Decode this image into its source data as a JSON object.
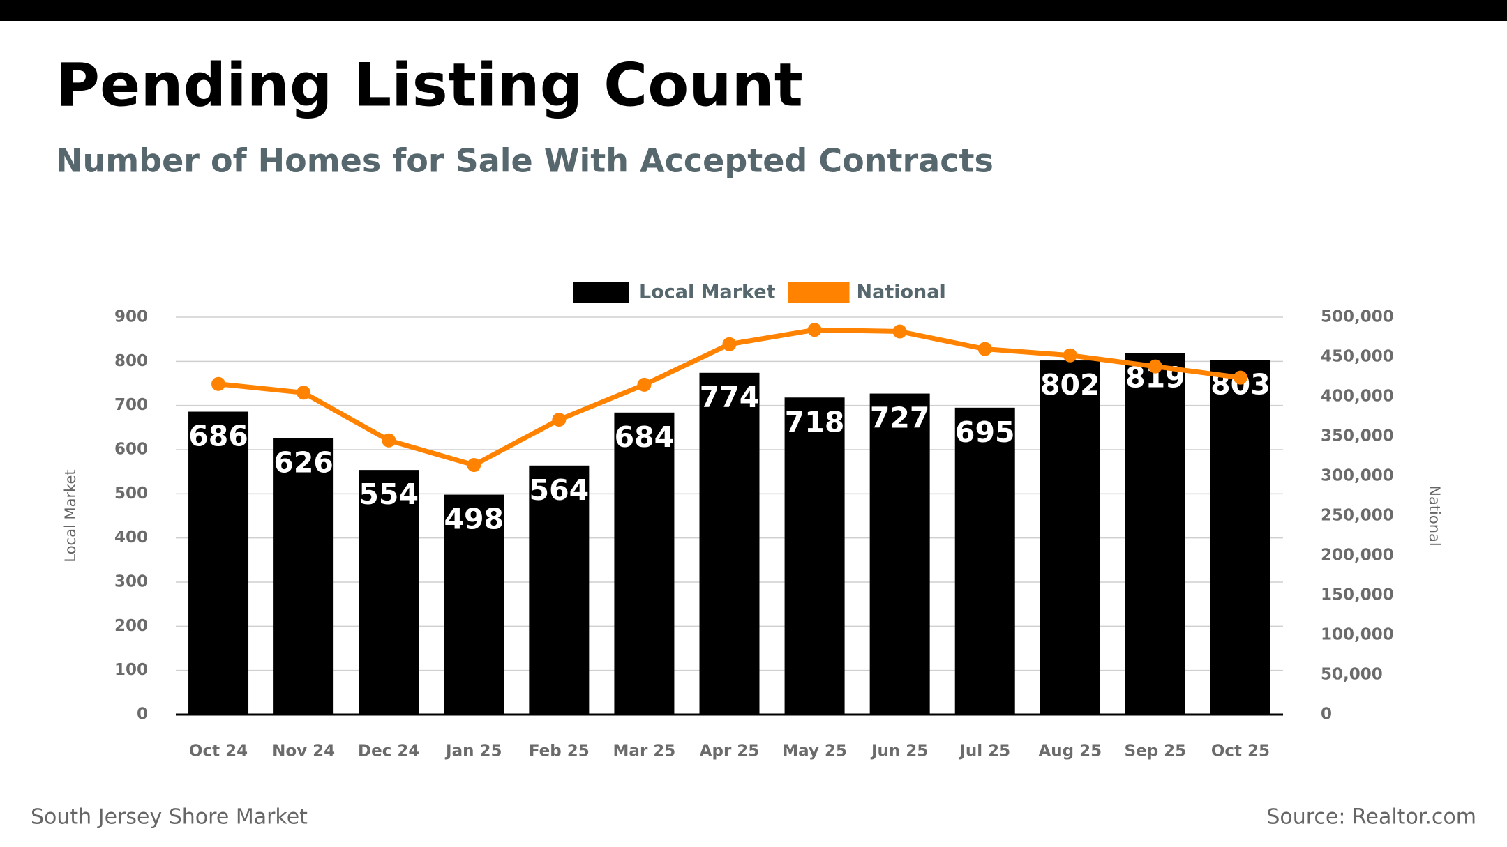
{
  "chart_data": {
    "type": "bar",
    "title": "Pending Listing Count",
    "subtitle": "Number of Homes for Sale With Accepted Contracts",
    "footer_left": "South Jersey Shore Market",
    "footer_right": "Source: Realtor.com",
    "y_label": "Local Market",
    "y2_label": "National",
    "categories": [
      "Oct 24",
      "Nov 24",
      "Dec 24",
      "Jan 25",
      "Feb 25",
      "Mar 25",
      "Apr 25",
      "May 25",
      "Jun 25",
      "Jul 25",
      "Aug 25",
      "Sep 25",
      "Oct 25"
    ],
    "series": [
      {
        "name": "Local Market",
        "type": "bar",
        "color": "#000000",
        "values": [
          686,
          626,
          554,
          498,
          564,
          684,
          774,
          718,
          727,
          695,
          802,
          819,
          803
        ]
      },
      {
        "name": "National",
        "type": "line",
        "axis": "y2",
        "color": "#ff8200",
        "values": [
          416000,
          405000,
          345000,
          314000,
          371000,
          415000,
          466000,
          484000,
          482000,
          460000,
          452000,
          438000,
          424000
        ]
      }
    ],
    "ylim": [
      0,
      900
    ],
    "yticks": [
      0,
      100,
      200,
      300,
      400,
      500,
      600,
      700,
      800,
      900
    ],
    "y2lim": [
      0,
      500000
    ],
    "y2ticks": [
      0,
      {
        "value": 50000,
        "label": "50,000"
      },
      {
        "value": 100000,
        "label": "100,000"
      },
      {
        "value": 150000,
        "label": "150,000"
      },
      {
        "value": 200000,
        "label": "200,000"
      },
      {
        "value": 250000,
        "label": "250,000"
      },
      {
        "value": 300000,
        "label": "300,000"
      },
      {
        "value": 350000,
        "label": "350,000"
      },
      {
        "value": 400000,
        "label": "400,000"
      },
      {
        "value": 450000,
        "label": "450,000"
      },
      {
        "value": 500000,
        "label": "500,000"
      }
    ],
    "grid": true,
    "legend": "top"
  }
}
